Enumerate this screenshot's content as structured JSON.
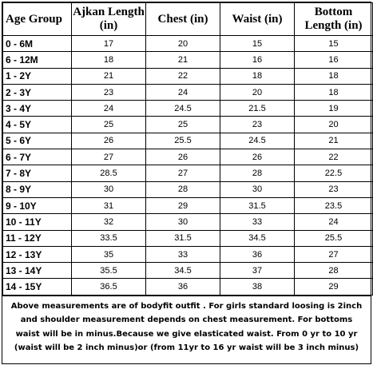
{
  "headers": {
    "age_group": "Age Group",
    "ajkan_length": "Ajkan Length (in)",
    "chest": "Chest (in)",
    "waist": "Waist (in)",
    "bottom_length": "Bottom Length (in)"
  },
  "rows": [
    {
      "age": "0 - 6M",
      "ajkan": "17",
      "chest": "20",
      "waist": "15",
      "bottom": "15"
    },
    {
      "age": "6 - 12M",
      "ajkan": "18",
      "chest": "21",
      "waist": "16",
      "bottom": "16"
    },
    {
      "age": "1 - 2Y",
      "ajkan": "21",
      "chest": "22",
      "waist": "18",
      "bottom": "18"
    },
    {
      "age": "2 - 3Y",
      "ajkan": "23",
      "chest": "24",
      "waist": "20",
      "bottom": "18"
    },
    {
      "age": "3 - 4Y",
      "ajkan": "24",
      "chest": "24.5",
      "waist": "21.5",
      "bottom": "19"
    },
    {
      "age": "4 - 5Y",
      "ajkan": "25",
      "chest": "25",
      "waist": "23",
      "bottom": "20"
    },
    {
      "age": "5 - 6Y",
      "ajkan": "26",
      "chest": "25.5",
      "waist": "24.5",
      "bottom": "21"
    },
    {
      "age": "6 - 7Y",
      "ajkan": "27",
      "chest": "26",
      "waist": "26",
      "bottom": "22"
    },
    {
      "age": "7 - 8Y",
      "ajkan": "28.5",
      "chest": "27",
      "waist": "28",
      "bottom": "22.5"
    },
    {
      "age": "8 - 9Y",
      "ajkan": "30",
      "chest": "28",
      "waist": "30",
      "bottom": "23"
    },
    {
      "age": "9 - 10Y",
      "ajkan": "31",
      "chest": "29",
      "waist": "31.5",
      "bottom": "23.5"
    },
    {
      "age": "10 - 11Y",
      "ajkan": "32",
      "chest": "30",
      "waist": "33",
      "bottom": "24"
    },
    {
      "age": "11 - 12Y",
      "ajkan": "33.5",
      "chest": "31.5",
      "waist": "34.5",
      "bottom": "25.5"
    },
    {
      "age": "12 - 13Y",
      "ajkan": "35",
      "chest": "33",
      "waist": "36",
      "bottom": "27"
    },
    {
      "age": "13 - 14Y",
      "ajkan": "35.5",
      "chest": "34.5",
      "waist": "37",
      "bottom": "28"
    },
    {
      "age": "14 - 15Y",
      "ajkan": "36.5",
      "chest": "36",
      "waist": "38",
      "bottom": "29"
    }
  ],
  "note": "Above measurements are of bodyfit outfit . For girls standard loosing is 2inch and shoulder measurement depends on chest measurement. For bottoms waist will be in minus.Because we give elasticated waist. From 0 yr to 10 yr (waist will be 2 inch minus)or (from 11yr to 16 yr waist will be 3 inch minus)"
}
